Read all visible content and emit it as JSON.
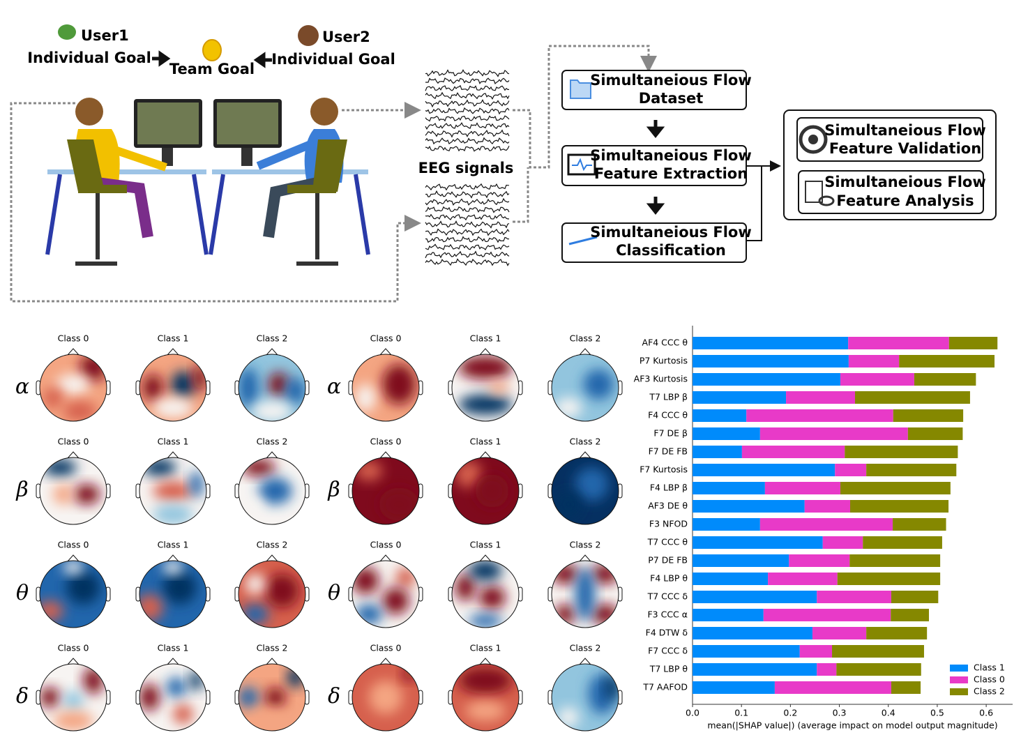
{
  "diagram": {
    "user1": "User1",
    "user2": "User2",
    "individual_goal": "Individual Goal",
    "team_goal": "Team Goal",
    "eeg_label": "EEG signals",
    "boxes": [
      {
        "lines": [
          "Simultaneious Flow",
          "Dataset"
        ]
      },
      {
        "lines": [
          "Simultaneious Flow",
          "Feature Extraction"
        ]
      },
      {
        "lines": [
          "Simultaneious Flow",
          "Classification"
        ]
      },
      {
        "lines": [
          "Simultaneious Flow",
          "Feature Validation"
        ]
      },
      {
        "lines": [
          "Simultaneious Flow",
          "Feature Analysis"
        ]
      }
    ]
  },
  "topomaps": {
    "bands": [
      "α",
      "β",
      "θ",
      "δ"
    ],
    "classes": [
      "Class 0",
      "Class 1",
      "Class 2"
    ]
  },
  "chart_data": {
    "type": "bar",
    "orientation": "horizontal",
    "stacked": true,
    "xlabel": "mean(|SHAP value|) (average impact on model output magnitude)",
    "categories": [
      "AF4 CCC θ",
      "P7 Kurtosis",
      "AF3 Kurtosis",
      "T7 LBP β",
      "F4 CCC θ",
      "F7 DE β",
      "F7 DE FB",
      "F7 Kurtosis",
      "F4 LBP β",
      "AF3 DE θ",
      "F3 NFOD",
      "T7 CCC θ",
      "P7 DE FB",
      "F4 LBP θ",
      "T7 CCC δ",
      "F3 CCC α",
      "F4 DTW δ",
      "F7 CCC δ",
      "T7 LBP θ",
      "T7 AAFOD"
    ],
    "series": [
      {
        "name": "Class 1",
        "color": "#008bfb",
        "values": [
          0.318,
          0.319,
          0.302,
          0.191,
          0.11,
          0.138,
          0.101,
          0.291,
          0.148,
          0.229,
          0.138,
          0.266,
          0.197,
          0.154,
          0.254,
          0.145,
          0.245,
          0.219,
          0.254,
          0.168
        ]
      },
      {
        "name": "Class 0",
        "color": "#e83ac8",
        "values": [
          0.206,
          0.103,
          0.151,
          0.141,
          0.3,
          0.302,
          0.21,
          0.064,
          0.154,
          0.093,
          0.271,
          0.082,
          0.124,
          0.142,
          0.152,
          0.26,
          0.11,
          0.066,
          0.04,
          0.238
        ]
      },
      {
        "name": "Class 2",
        "color": "#858800",
        "values": [
          0.099,
          0.195,
          0.126,
          0.235,
          0.143,
          0.112,
          0.231,
          0.184,
          0.225,
          0.201,
          0.109,
          0.162,
          0.185,
          0.21,
          0.096,
          0.078,
          0.124,
          0.188,
          0.173,
          0.06
        ]
      }
    ],
    "xlim": [
      0,
      0.654
    ],
    "xticks": [
      {
        "value": 0,
        "label": "0.0"
      },
      {
        "value": 0.1,
        "label": "0.1"
      },
      {
        "value": 0.2,
        "label": "0.2"
      },
      {
        "value": 0.3,
        "label": "0.3"
      },
      {
        "value": 0.4,
        "label": "0.4"
      },
      {
        "value": 0.5,
        "label": "0.5"
      },
      {
        "value": 0.6,
        "label": "0.6"
      }
    ],
    "legend": "lower right"
  }
}
